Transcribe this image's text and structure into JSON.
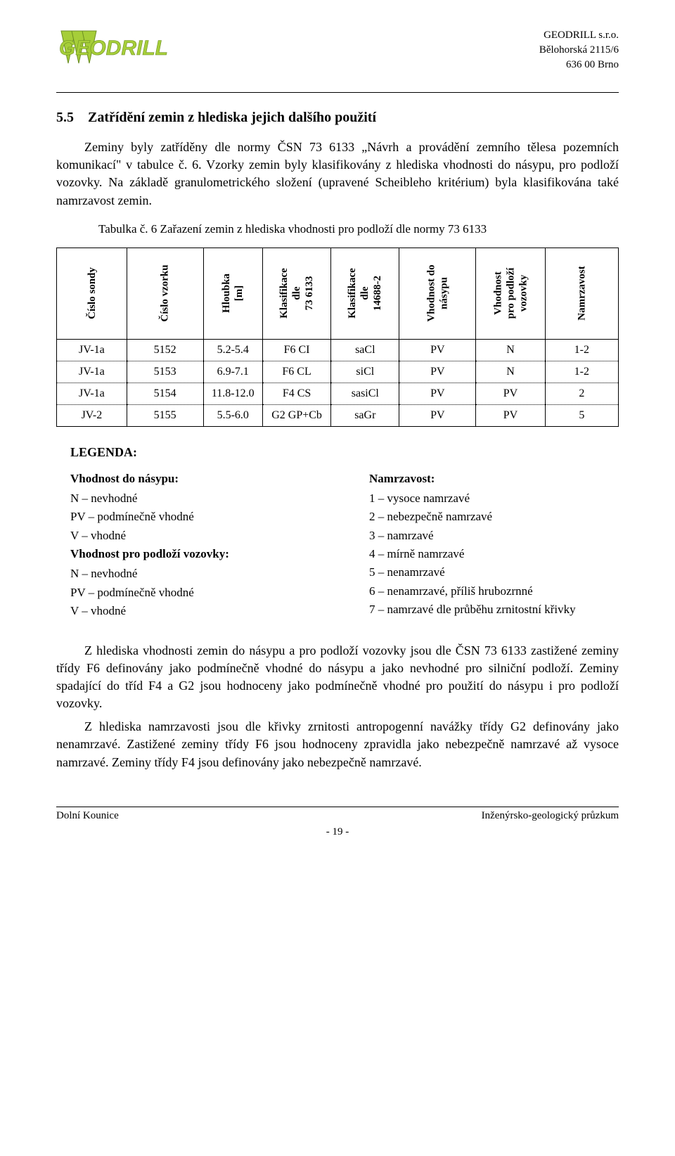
{
  "header": {
    "company": "GEODRILL s.r.o.",
    "address1": "Bělohorská 2115/6",
    "address2": "636 00 Brno"
  },
  "logo": {
    "name": "GEODRILL",
    "fill": "#a6ce39",
    "stroke": "#6b8e23"
  },
  "section": {
    "number": "5.5",
    "title": "Zatřídění zemin z hlediska jejich dalšího použití"
  },
  "para1": "Zeminy byly zatříděny dle normy ČSN 73 6133 „Návrh a provádění zemního tělesa pozemních komunikací\" v tabulce č. 6. Vzorky zemin byly klasifikovány z hlediska vhodnosti do násypu, pro podloží vozovky. Na základě granulometrického složení (upravené Scheibleho kritérium) byla klasifikována také namrzavost zemin.",
  "tableCaption": "Tabulka č. 6        Zařazení zemin z hlediska vhodnosti pro podloží dle normy 73 6133",
  "tableHeaders": [
    "Číslo sondy",
    "Číslo vzorku",
    "Hloubka\n[m]",
    "Klasifikace\ndle\n73 6133",
    "Klasifikace\ndle\n14688-2",
    "Vhodnost do\nnásypu",
    "Vhodnost\npro podloží\nvozovky",
    "Namrzavost"
  ],
  "rows": [
    {
      "sondy": "JV-1a",
      "vzorku": "5152",
      "hloubka": "5.2-5.4",
      "k6133": "F6 CI",
      "k14688": "saCl",
      "nasyp": "PV",
      "podlozi": "N",
      "namrz": "1-2"
    },
    {
      "sondy": "JV-1a",
      "vzorku": "5153",
      "hloubka": "6.9-7.1",
      "k6133": "F6 CL",
      "k14688": "siCl",
      "nasyp": "PV",
      "podlozi": "N",
      "namrz": "1-2"
    },
    {
      "sondy": "JV-1a",
      "vzorku": "5154",
      "hloubka": "11.8-12.0",
      "k6133": "F4 CS",
      "k14688": "sasiCl",
      "nasyp": "PV",
      "podlozi": "PV",
      "namrz": "2"
    },
    {
      "sondy": "JV-2",
      "vzorku": "5155",
      "hloubka": "5.5-6.0",
      "k6133": "G2 GP+Cb",
      "k14688": "saGr",
      "nasyp": "PV",
      "podlozi": "PV",
      "namrz": "5"
    }
  ],
  "legend": {
    "title": "LEGENDA:",
    "left": {
      "head1": "Vhodnost do násypu:",
      "l1": "N – nevhodné",
      "l2": "PV – podmínečně vhodné",
      "l3": "V – vhodné",
      "head2": "Vhodnost pro podloží vozovky:",
      "l4": "N – nevhodné",
      "l5": "PV – podmínečně vhodné",
      "l6": "V – vhodné"
    },
    "right": {
      "head": "Namrzavost:",
      "r1": "1 – vysoce namrzavé",
      "r2": "2 – nebezpečně namrzavé",
      "r3": "3 – namrzavé",
      "r4": "4 – mírně namrzavé",
      "r5": "5 – nenamrzavé",
      "r6": "6 – nenamrzavé, příliš hrubozrnné",
      "r7": "7 – namrzavé dle průběhu zrnitostní křivky"
    }
  },
  "para2": "Z hlediska vhodnosti zemin do násypu a pro podloží vozovky jsou dle ČSN 73 6133 zastižené zeminy třídy F6 definovány jako podmínečně vhodné do násypu a jako nevhodné pro silniční podloží. Zeminy spadající do tříd F4 a G2 jsou hodnoceny jako podmínečně vhodné pro použití do násypu i pro podloží vozovky.",
  "para3": "Z hlediska namrzavosti jsou dle křivky zrnitosti antropogenní navážky třídy G2 definovány jako nenamrzavé. Zastižené zeminy třídy F6 jsou hodnoceny zpravidla jako nebezpečně namrzavé až vysoce namrzavé. Zeminy třídy F4 jsou definovány jako nebezpečně namrzavé.",
  "footer": {
    "left": "Dolní Kounice",
    "right": "Inženýrsko-geologický průzkum",
    "page": "- 19 -"
  }
}
